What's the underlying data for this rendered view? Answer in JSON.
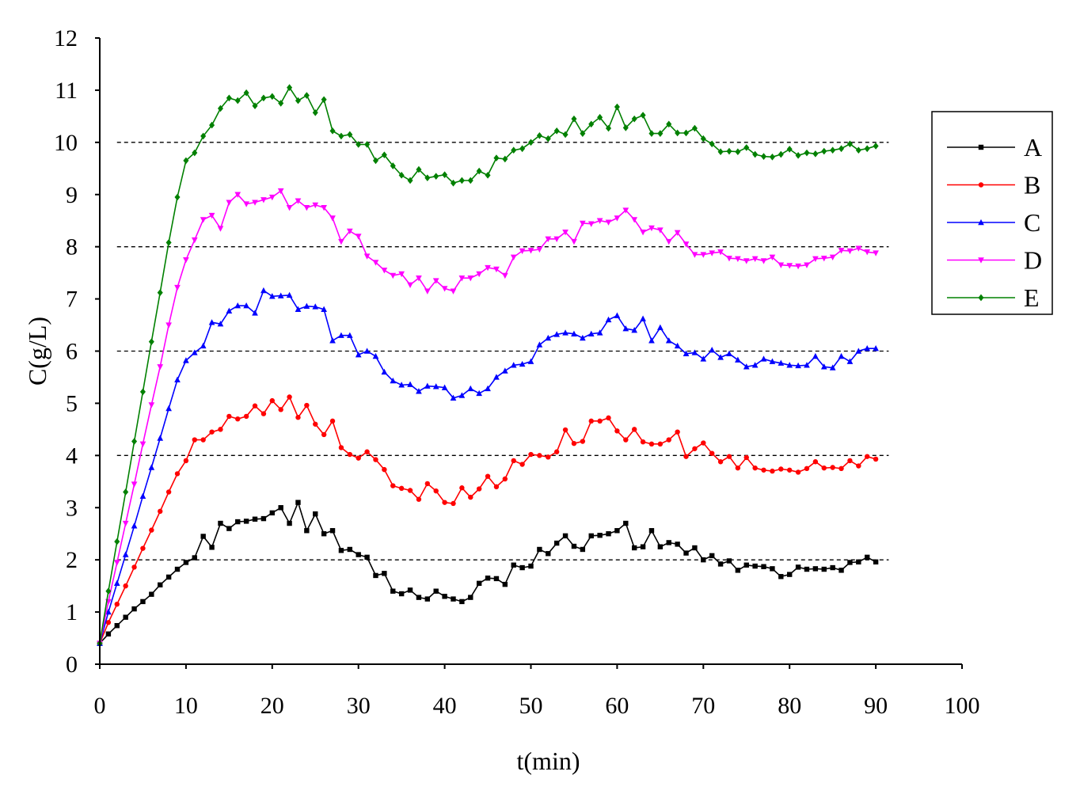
{
  "chart_data": {
    "type": "line",
    "title": "",
    "xlabel": "t(min)",
    "ylabel": "C(g/L)",
    "xlim": [
      0,
      100
    ],
    "ylim": [
      0,
      12
    ],
    "x_ticks": [
      "0",
      "10",
      "20",
      "30",
      "40",
      "50",
      "60",
      "70",
      "80",
      "90",
      "100"
    ],
    "y_ticks": [
      "0",
      "1",
      "2",
      "3",
      "4",
      "5",
      "6",
      "7",
      "8",
      "9",
      "10",
      "11",
      "12"
    ],
    "grid": "none",
    "reference_lines": [
      2,
      4,
      6,
      8,
      10
    ],
    "legend_position": "right",
    "x": [
      0,
      1,
      2,
      3,
      4,
      5,
      6,
      7,
      8,
      9,
      10,
      11,
      12,
      13,
      14,
      15,
      16,
      17,
      18,
      19,
      20,
      21,
      22,
      23,
      24,
      25,
      26,
      27,
      28,
      29,
      30,
      31,
      32,
      33,
      34,
      35,
      36,
      37,
      38,
      39,
      40,
      41,
      42,
      43,
      44,
      45,
      46,
      47,
      48,
      49,
      50,
      51,
      52,
      53,
      54,
      55,
      56,
      57,
      58,
      59,
      60,
      61,
      62,
      63,
      64,
      65,
      66,
      67,
      68,
      69,
      70,
      71,
      72,
      73,
      74,
      75,
      76,
      77,
      78,
      79,
      80,
      81,
      82,
      83,
      84,
      85,
      86,
      87,
      88,
      89,
      90
    ],
    "series": [
      {
        "name": "A",
        "color": "#000000",
        "marker": "square",
        "values": [
          0.4,
          0.58,
          0.74,
          0.9,
          1.06,
          1.2,
          1.34,
          1.52,
          1.67,
          1.82,
          1.95,
          2.04,
          2.45,
          2.24,
          2.7,
          2.6,
          2.73,
          2.74,
          2.78,
          2.79,
          2.9,
          3.0,
          2.7,
          3.1,
          2.56,
          2.88,
          2.5,
          2.56,
          2.18,
          2.2,
          2.1,
          2.05,
          1.7,
          1.74,
          1.4,
          1.35,
          1.42,
          1.28,
          1.25,
          1.4,
          1.3,
          1.25,
          1.2,
          1.28,
          1.55,
          1.65,
          1.64,
          1.53,
          1.9,
          1.85,
          1.88,
          2.2,
          2.12,
          2.32,
          2.46,
          2.26,
          2.2,
          2.46,
          2.47,
          2.5,
          2.56,
          2.7,
          2.23,
          2.25,
          2.56,
          2.25,
          2.33,
          2.3,
          2.13,
          2.23,
          2.0,
          2.08,
          1.92,
          1.98,
          1.8,
          1.9,
          1.88,
          1.87,
          1.83,
          1.68,
          1.72,
          1.86,
          1.82,
          1.83,
          1.82,
          1.85,
          1.8,
          1.95,
          1.96,
          2.05,
          1.96
        ]
      },
      {
        "name": "B",
        "color": "#ff0000",
        "marker": "circle",
        "values": [
          0.4,
          0.8,
          1.15,
          1.5,
          1.86,
          2.22,
          2.57,
          2.93,
          3.3,
          3.65,
          3.9,
          4.3,
          4.3,
          4.45,
          4.5,
          4.75,
          4.7,
          4.75,
          4.95,
          4.8,
          5.05,
          4.88,
          5.12,
          4.73,
          4.96,
          4.6,
          4.4,
          4.66,
          4.15,
          4.02,
          3.95,
          4.07,
          3.92,
          3.73,
          3.42,
          3.37,
          3.33,
          3.16,
          3.46,
          3.32,
          3.1,
          3.08,
          3.38,
          3.2,
          3.36,
          3.6,
          3.4,
          3.55,
          3.9,
          3.83,
          4.02,
          4.0,
          3.97,
          4.07,
          4.49,
          4.23,
          4.27,
          4.66,
          4.66,
          4.72,
          4.47,
          4.3,
          4.5,
          4.26,
          4.22,
          4.22,
          4.3,
          4.45,
          3.98,
          4.13,
          4.24,
          4.04,
          3.88,
          3.98,
          3.76,
          3.96,
          3.76,
          3.72,
          3.7,
          3.74,
          3.72,
          3.68,
          3.75,
          3.88,
          3.76,
          3.77,
          3.75,
          3.9,
          3.8,
          3.98,
          3.93
        ]
      },
      {
        "name": "C",
        "color": "#0000ff",
        "marker": "triangle-up",
        "values": [
          0.4,
          1.0,
          1.55,
          2.1,
          2.65,
          3.22,
          3.77,
          4.33,
          4.9,
          5.45,
          5.82,
          5.97,
          6.1,
          6.55,
          6.52,
          6.77,
          6.87,
          6.87,
          6.73,
          7.16,
          7.05,
          7.06,
          7.07,
          6.8,
          6.86,
          6.85,
          6.8,
          6.2,
          6.3,
          6.3,
          5.93,
          6.0,
          5.9,
          5.6,
          5.43,
          5.35,
          5.36,
          5.23,
          5.33,
          5.32,
          5.3,
          5.1,
          5.15,
          5.28,
          5.19,
          5.28,
          5.5,
          5.62,
          5.73,
          5.75,
          5.8,
          6.12,
          6.25,
          6.32,
          6.35,
          6.33,
          6.25,
          6.33,
          6.35,
          6.6,
          6.68,
          6.43,
          6.4,
          6.62,
          6.2,
          6.45,
          6.2,
          6.1,
          5.95,
          5.97,
          5.85,
          6.02,
          5.88,
          5.95,
          5.83,
          5.7,
          5.73,
          5.85,
          5.8,
          5.77,
          5.73,
          5.72,
          5.73,
          5.9,
          5.7,
          5.68,
          5.9,
          5.8,
          6.0,
          6.05,
          6.05
        ]
      },
      {
        "name": "D",
        "color": "#ff00ff",
        "marker": "triangle-down",
        "values": [
          0.4,
          1.2,
          1.95,
          2.7,
          3.45,
          4.22,
          4.97,
          5.7,
          6.5,
          7.22,
          7.75,
          8.13,
          8.52,
          8.6,
          8.35,
          8.85,
          9.0,
          8.82,
          8.85,
          8.9,
          8.95,
          9.07,
          8.75,
          8.88,
          8.75,
          8.8,
          8.75,
          8.55,
          8.1,
          8.3,
          8.2,
          7.82,
          7.7,
          7.55,
          7.45,
          7.48,
          7.27,
          7.4,
          7.15,
          7.35,
          7.2,
          7.15,
          7.4,
          7.4,
          7.48,
          7.6,
          7.57,
          7.45,
          7.8,
          7.92,
          7.93,
          7.95,
          8.15,
          8.15,
          8.28,
          8.1,
          8.45,
          8.44,
          8.5,
          8.47,
          8.55,
          8.7,
          8.52,
          8.28,
          8.36,
          8.32,
          8.1,
          8.27,
          8.05,
          7.85,
          7.85,
          7.88,
          7.9,
          7.78,
          7.77,
          7.73,
          7.77,
          7.73,
          7.8,
          7.65,
          7.64,
          7.63,
          7.65,
          7.77,
          7.78,
          7.8,
          7.93,
          7.92,
          7.97,
          7.9,
          7.88
        ]
      },
      {
        "name": "E",
        "color": "#008000",
        "marker": "diamond",
        "values": [
          0.4,
          1.4,
          2.35,
          3.3,
          4.27,
          5.22,
          6.18,
          7.12,
          8.08,
          8.95,
          9.65,
          9.8,
          10.12,
          10.33,
          10.65,
          10.85,
          10.8,
          10.95,
          10.7,
          10.85,
          10.88,
          10.75,
          11.05,
          10.8,
          10.9,
          10.57,
          10.82,
          10.22,
          10.12,
          10.15,
          9.96,
          9.96,
          9.65,
          9.76,
          9.55,
          9.37,
          9.27,
          9.48,
          9.32,
          9.35,
          9.38,
          9.22,
          9.27,
          9.27,
          9.45,
          9.37,
          9.7,
          9.68,
          9.85,
          9.88,
          10.0,
          10.13,
          10.07,
          10.22,
          10.15,
          10.45,
          10.17,
          10.35,
          10.48,
          10.27,
          10.68,
          10.28,
          10.45,
          10.52,
          10.17,
          10.17,
          10.35,
          10.18,
          10.18,
          10.27,
          10.07,
          9.97,
          9.82,
          9.83,
          9.82,
          9.9,
          9.77,
          9.73,
          9.72,
          9.77,
          9.87,
          9.75,
          9.8,
          9.78,
          9.83,
          9.85,
          9.88,
          9.97,
          9.85,
          9.88,
          9.93
        ]
      }
    ]
  }
}
